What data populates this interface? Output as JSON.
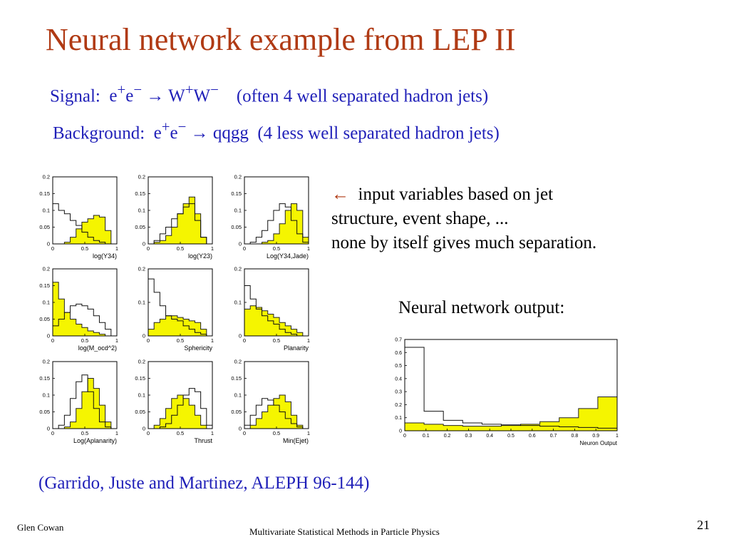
{
  "slide": {
    "title": "Neural network example from LEP II",
    "signal": {
      "label": "Signal:",
      "process_html": "e<sup>+</sup>e<sup>−</sup> → W<sup>+</sup>W<sup>−</sup>",
      "note": "(often 4 well separated hadron jets)"
    },
    "background": {
      "label": "Background:",
      "process_html": "e<sup>+</sup>e<sup>−</sup> → qqgg",
      "note": "(4 less well separated hadron jets)"
    },
    "notes": {
      "arrow": "←",
      "line1": "input variables based on jet",
      "line2": "structure, event shape, ...",
      "line3": "none by itself gives much separation."
    },
    "nn_label": "Neural network output:",
    "reference": "(Garrido, Juste and Martinez, ALEPH 96-144)",
    "footer_left": "Glen Cowan",
    "footer_center": "Multivariate Statistical Methods in Particle Physics",
    "page_number": "21"
  },
  "colors": {
    "title": "#b03a14",
    "text_blue": "#1f1fb8",
    "signal_fill": "#f5f500",
    "outline": "#111111"
  },
  "chart_data": [
    {
      "type": "area",
      "xlabel": "log(Y34)",
      "xlim": [
        0,
        1
      ],
      "ylim": [
        0,
        0.2
      ],
      "xticks": [
        "0",
        "0.5",
        "1"
      ],
      "yticks": [
        "0",
        "0.05",
        "0.1",
        "0.15",
        "0.2"
      ],
      "series": [
        {
          "name": "signal",
          "values": [
            0,
            0,
            0.005,
            0.02,
            0.045,
            0.065,
            0.075,
            0.085,
            0.08,
            0.04,
            0
          ]
        },
        {
          "name": "background",
          "values": [
            0.12,
            0.1,
            0.09,
            0.07,
            0.055,
            0.035,
            0.02,
            0.01,
            0.005,
            0,
            0
          ]
        }
      ]
    },
    {
      "type": "area",
      "xlabel": "log(Y23)",
      "xlim": [
        0,
        1
      ],
      "ylim": [
        0,
        0.2
      ],
      "xticks": [
        "0",
        "0.5",
        "1"
      ],
      "yticks": [
        "0",
        "0.05",
        "0.1",
        "0.15",
        "0.2"
      ],
      "series": [
        {
          "name": "signal",
          "values": [
            0,
            0.005,
            0.01,
            0.025,
            0.05,
            0.09,
            0.12,
            0.14,
            0.09,
            0.02,
            0
          ]
        },
        {
          "name": "background",
          "values": [
            0,
            0.01,
            0.03,
            0.05,
            0.075,
            0.09,
            0.11,
            0.12,
            0.07,
            0.02,
            0
          ]
        }
      ]
    },
    {
      "type": "area",
      "xlabel": "Log(Y34,Jade)",
      "xlim": [
        0,
        1
      ],
      "ylim": [
        0,
        0.2
      ],
      "xticks": [
        "0",
        "0.5",
        "1"
      ],
      "yticks": [
        "0",
        "0.05",
        "0.1",
        "0.15",
        "0.2"
      ],
      "series": [
        {
          "name": "signal",
          "values": [
            0,
            0,
            0,
            0.005,
            0.01,
            0.03,
            0.06,
            0.1,
            0.12,
            0.1,
            0.02
          ]
        },
        {
          "name": "background",
          "values": [
            0,
            0.005,
            0.02,
            0.04,
            0.07,
            0.1,
            0.12,
            0.11,
            0.07,
            0.03,
            0.005
          ]
        }
      ]
    },
    {
      "type": "area",
      "xlabel": "log(M_ocd^2)",
      "xlim": [
        0,
        1
      ],
      "ylim": [
        0,
        0.2
      ],
      "xticks": [
        "0",
        "0.5",
        "1"
      ],
      "yticks": [
        "0",
        "0.05",
        "0.1",
        "0.15",
        "0.2"
      ],
      "series": [
        {
          "name": "signal",
          "values": [
            0.16,
            0.11,
            0.07,
            0.05,
            0.035,
            0.025,
            0.015,
            0.01,
            0.005,
            0,
            0
          ]
        },
        {
          "name": "background",
          "values": [
            0.03,
            0.05,
            0.07,
            0.09,
            0.095,
            0.09,
            0.08,
            0.06,
            0.04,
            0.02,
            0
          ]
        }
      ]
    },
    {
      "type": "area",
      "xlabel": "Sphericity",
      "xlim": [
        0,
        1
      ],
      "ylim": [
        0,
        0.2
      ],
      "xticks": [
        "0",
        "0.5",
        "1"
      ],
      "yticks": [
        "0",
        "0.1",
        "0.2"
      ],
      "series": [
        {
          "name": "signal",
          "values": [
            0.02,
            0.04,
            0.05,
            0.06,
            0.06,
            0.055,
            0.05,
            0.045,
            0.04,
            0.02,
            0
          ]
        },
        {
          "name": "background",
          "values": [
            0.17,
            0.13,
            0.09,
            0.06,
            0.05,
            0.045,
            0.03,
            0.02,
            0.01,
            0.005,
            0
          ]
        }
      ]
    },
    {
      "type": "area",
      "xlabel": "Planarity",
      "xlim": [
        0,
        1
      ],
      "ylim": [
        0,
        0.2
      ],
      "xticks": [
        "0",
        "0.5",
        "1"
      ],
      "yticks": [
        "0",
        "0.1",
        "0.2"
      ],
      "series": [
        {
          "name": "signal",
          "values": [
            0.08,
            0.09,
            0.085,
            0.075,
            0.065,
            0.055,
            0.04,
            0.03,
            0.02,
            0.01,
            0
          ]
        },
        {
          "name": "background",
          "values": [
            0.15,
            0.11,
            0.08,
            0.06,
            0.045,
            0.035,
            0.02,
            0.01,
            0.005,
            0,
            0
          ]
        }
      ]
    },
    {
      "type": "area",
      "xlabel": "Log(Aplanarity)",
      "xlim": [
        0,
        1
      ],
      "ylim": [
        0,
        0.2
      ],
      "xticks": [
        "0",
        "0.5",
        "1"
      ],
      "yticks": [
        "0",
        "0.05",
        "0.1",
        "0.15",
        "0.2"
      ],
      "series": [
        {
          "name": "signal",
          "values": [
            0,
            0,
            0.005,
            0.02,
            0.06,
            0.11,
            0.15,
            0.12,
            0.07,
            0.02,
            0
          ]
        },
        {
          "name": "background",
          "values": [
            0,
            0.01,
            0.04,
            0.09,
            0.14,
            0.16,
            0.11,
            0.06,
            0.02,
            0.005,
            0
          ]
        }
      ]
    },
    {
      "type": "area",
      "xlabel": "Thrust",
      "xlim": [
        0,
        1
      ],
      "ylim": [
        0,
        0.2
      ],
      "xticks": [
        "0",
        "0.5",
        "1"
      ],
      "yticks": [
        "0",
        "0.05",
        "0.1",
        "0.15",
        "0.2"
      ],
      "series": [
        {
          "name": "signal",
          "values": [
            0,
            0.01,
            0.03,
            0.06,
            0.09,
            0.1,
            0.09,
            0.07,
            0.04,
            0.01,
            0
          ]
        },
        {
          "name": "background",
          "values": [
            0,
            0,
            0.005,
            0.015,
            0.04,
            0.07,
            0.1,
            0.12,
            0.11,
            0.06,
            0.01
          ]
        }
      ]
    },
    {
      "type": "area",
      "xlabel": "Min(Ejet)",
      "xlim": [
        0,
        1
      ],
      "ylim": [
        0,
        0.2
      ],
      "xticks": [
        "0",
        "0.5",
        "1"
      ],
      "yticks": [
        "0",
        "0.05",
        "0.1",
        "0.15",
        "0.2"
      ],
      "series": [
        {
          "name": "signal",
          "values": [
            0,
            0.01,
            0.03,
            0.05,
            0.07,
            0.09,
            0.1,
            0.08,
            0.04,
            0.01,
            0
          ]
        },
        {
          "name": "background",
          "values": [
            0.01,
            0.04,
            0.07,
            0.09,
            0.085,
            0.07,
            0.05,
            0.03,
            0.015,
            0.005,
            0
          ]
        }
      ]
    },
    {
      "type": "area",
      "xlabel": "Neuron Output",
      "xlim": [
        0,
        1
      ],
      "ylim": [
        0,
        0.7
      ],
      "xticks": [
        "0",
        "0.1",
        "0.2",
        "0.3",
        "0.4",
        "0.5",
        "0.6",
        "0.7",
        "0.8",
        "0.9",
        "1"
      ],
      "yticks": [
        "0",
        "0.1",
        "0.2",
        "0.3",
        "0.4",
        "0.5",
        "0.6",
        "0.7"
      ],
      "series": [
        {
          "name": "signal",
          "values": [
            0.06,
            0.05,
            0.04,
            0.035,
            0.035,
            0.04,
            0.05,
            0.07,
            0.1,
            0.17,
            0.26
          ]
        },
        {
          "name": "background",
          "values": [
            0.64,
            0.15,
            0.08,
            0.06,
            0.05,
            0.045,
            0.04,
            0.035,
            0.03,
            0.025,
            0.02
          ]
        }
      ]
    }
  ]
}
